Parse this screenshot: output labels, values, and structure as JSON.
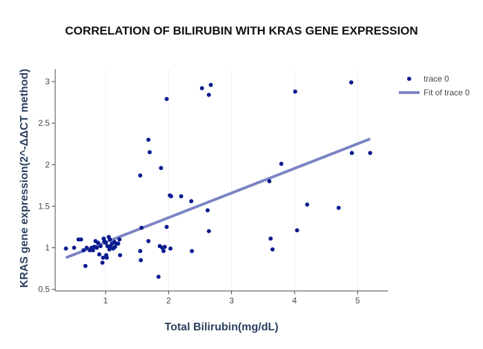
{
  "chart_data": {
    "type": "scatter",
    "title": "CORRELATION OF BILIRUBIN WITH KRAS GENE EXPRESSION",
    "xlabel": "Total Bilirubin(mg/dL)",
    "ylabel": "KRAS gene expression(2^-ΔΔCT method)",
    "xlim": [
      0.2,
      5.48
    ],
    "ylim": [
      0.48,
      3.15
    ],
    "x_ticks": [
      1,
      2,
      3,
      4,
      5
    ],
    "x_tick_labels": [
      "1",
      "2",
      "3",
      "4",
      "5"
    ],
    "y_ticks": [
      0.5,
      1,
      1.5,
      2,
      2.5,
      3
    ],
    "y_tick_labels": [
      "0.5",
      "1",
      "1.5",
      "2",
      "2.5",
      "3"
    ],
    "grid": "vertical",
    "legend_position": "top-right",
    "series": [
      {
        "name": "trace 0",
        "mode": "markers",
        "color": "#0a1a8f",
        "x": [
          0.37,
          0.5,
          0.57,
          0.61,
          0.65,
          0.68,
          0.7,
          0.75,
          0.78,
          0.8,
          0.82,
          0.84,
          0.86,
          0.88,
          0.9,
          0.92,
          0.95,
          0.96,
          0.97,
          0.98,
          1.0,
          1.01,
          1.02,
          1.03,
          1.05,
          1.06,
          1.07,
          1.08,
          1.1,
          1.12,
          1.14,
          1.15,
          1.17,
          1.2,
          1.22,
          1.23,
          1.55,
          1.55,
          1.56,
          1.57,
          1.68,
          1.68,
          1.7,
          1.84,
          1.86,
          1.88,
          1.9,
          1.92,
          1.94,
          1.97,
          1.97,
          2.02,
          2.03,
          2.04,
          2.2,
          2.36,
          2.37,
          2.53,
          2.62,
          2.64,
          2.64,
          2.67,
          3.6,
          3.62,
          3.65,
          3.79,
          4.01,
          4.04,
          4.2,
          4.7,
          4.9,
          4.91,
          5.2
        ],
        "y": [
          0.99,
          1.0,
          1.1,
          1.1,
          0.97,
          0.78,
          1.0,
          0.97,
          1.0,
          0.97,
          1.01,
          1.08,
          1.0,
          1.06,
          0.92,
          1.02,
          0.82,
          0.88,
          1.11,
          1.08,
          1.06,
          0.91,
          0.88,
          1.02,
          1.13,
          0.98,
          1.1,
          1.02,
          1.05,
          0.99,
          1.07,
          1.01,
          1.05,
          1.05,
          1.1,
          0.91,
          1.87,
          0.96,
          0.85,
          1.24,
          1.08,
          2.3,
          2.15,
          0.65,
          1.02,
          1.96,
          1.0,
          0.96,
          1.01,
          2.79,
          1.25,
          1.63,
          0.99,
          1.62,
          1.62,
          1.56,
          0.96,
          2.92,
          1.45,
          2.84,
          1.2,
          2.96,
          1.8,
          1.11,
          0.98,
          2.01,
          2.88,
          1.21,
          1.52,
          1.48,
          2.99,
          2.14,
          2.14
        ]
      },
      {
        "name": "Fit of trace 0",
        "mode": "lines",
        "color": "#7a84c4",
        "x": [
          0.37,
          5.2
        ],
        "y": [
          0.88,
          2.31
        ]
      }
    ]
  }
}
